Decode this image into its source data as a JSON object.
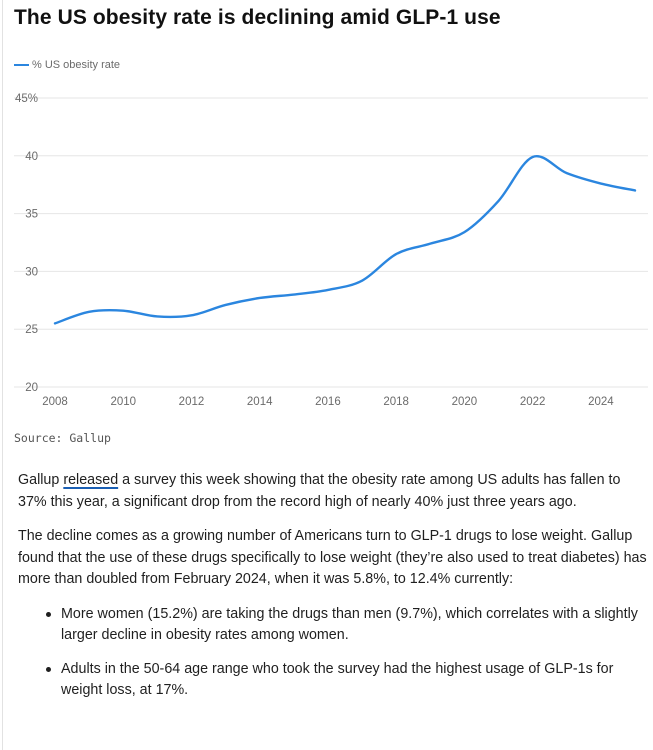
{
  "title": "The US obesity rate is declining amid GLP-1 use",
  "source": "Source: Gallup",
  "colors": {
    "series": "#2b86df",
    "grid": "#e6e6e6",
    "axis_text": "#6b6b6b"
  },
  "chart_data": {
    "type": "line",
    "title": "The US obesity rate is declining amid GLP-1 use",
    "xlabel": "",
    "ylabel": "",
    "xlim": [
      2008,
      2025
    ],
    "ylim": [
      20,
      45
    ],
    "grid": true,
    "legend": "top-left",
    "x_ticks": [
      "2008",
      "2010",
      "2012",
      "2014",
      "2016",
      "2018",
      "2020",
      "2022",
      "2024"
    ],
    "y_ticks": [
      "20",
      "25",
      "30",
      "35",
      "40",
      "45%"
    ],
    "series": [
      {
        "name": "% US obesity rate",
        "color": "#2b86df",
        "x": [
          2008,
          2009,
          2010,
          2011,
          2012,
          2013,
          2014,
          2015,
          2016,
          2017,
          2018,
          2019,
          2020,
          2021,
          2022,
          2023,
          2024,
          2025
        ],
        "y": [
          25.5,
          26.5,
          26.6,
          26.1,
          26.2,
          27.1,
          27.7,
          28.0,
          28.4,
          29.2,
          31.5,
          32.4,
          33.4,
          36.1,
          39.9,
          38.5,
          37.6,
          37.0
        ]
      }
    ]
  },
  "article": {
    "p1_link": "released",
    "p1_text": " a survey this week showing that the obesity rate among US adults has fallen to 37% this year, a significant drop from the record high of nearly 40% just three years ago.",
    "p1_prefix": "Gallup ",
    "p2": "The decline comes as a growing number of Americans turn to GLP-1 drugs to lose weight. Gallup found that the use of these drugs specifically to lose weight (they’re also used to treat diabetes) has more than doubled from February 2024, when it was 5.8%, to 12.4% currently:",
    "bullets": [
      "More women (15.2%) are taking the drugs than men (9.7%), which correlates with a slightly larger decline in obesity rates among women.",
      "Adults in the 50-64 age range who took the survey had the highest usage of GLP-1s for weight loss, at 17%."
    ]
  }
}
